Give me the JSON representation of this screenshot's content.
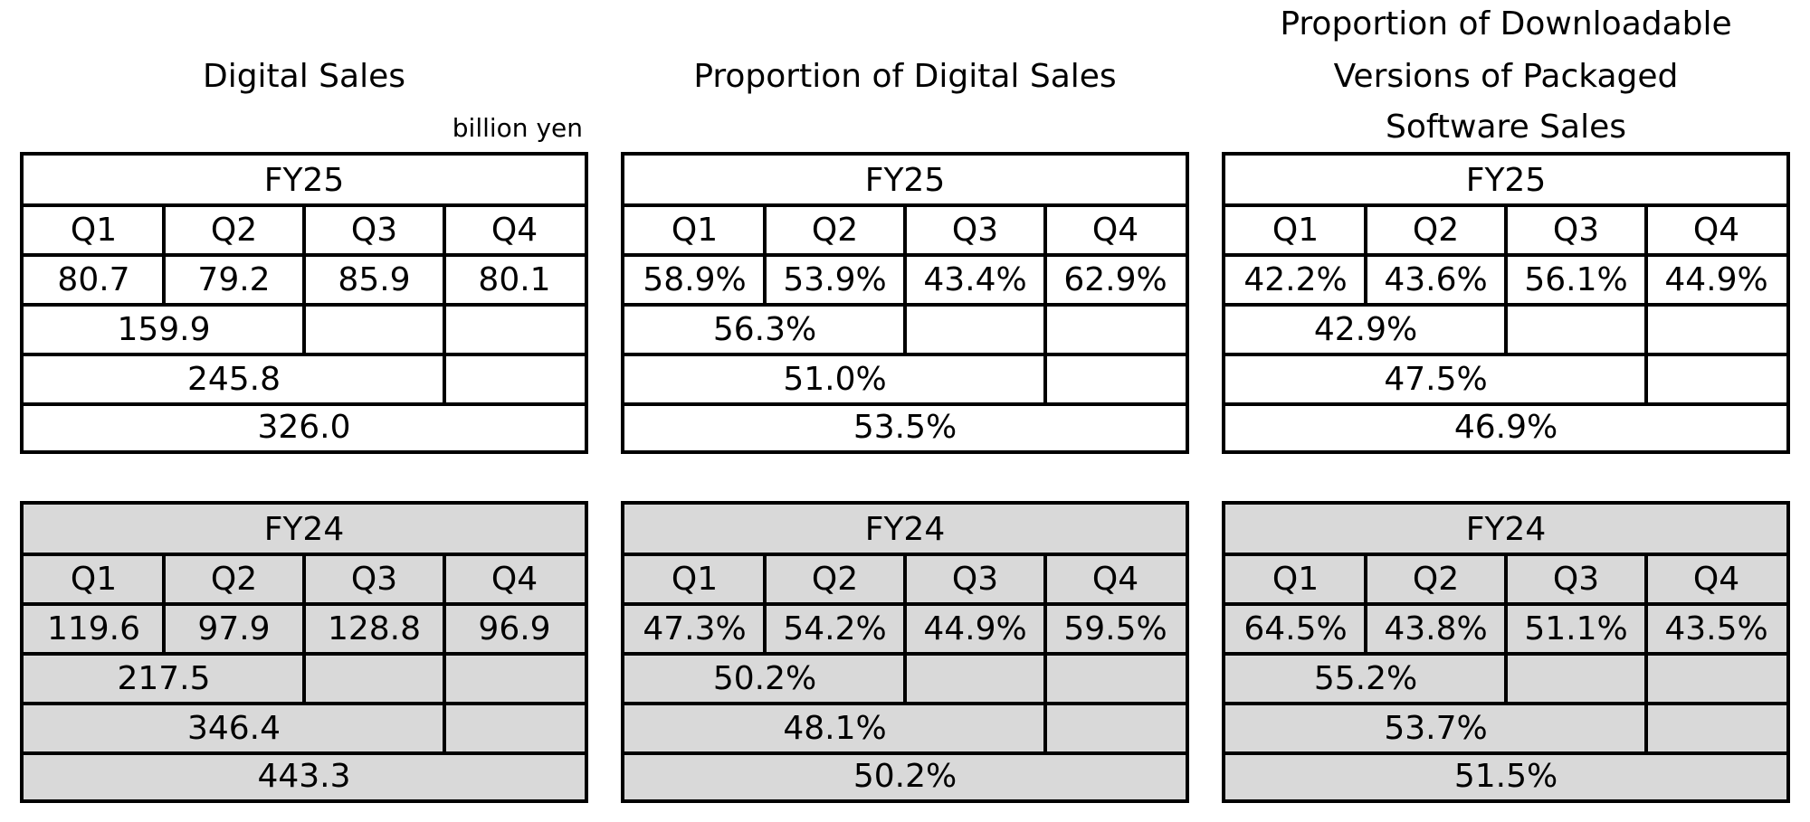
{
  "columns": [
    {
      "title_lines": [
        "Digital Sales"
      ],
      "unit": "billion yen",
      "tables": [
        {
          "year": "FY25",
          "quarters": [
            "Q1",
            "Q2",
            "Q3",
            "Q4"
          ],
          "values": [
            "80.7",
            "79.2",
            "85.9",
            "80.1"
          ],
          "h1": "159.9",
          "q1_q3": "245.8",
          "full_year": "326.0"
        },
        {
          "year": "FY24",
          "quarters": [
            "Q1",
            "Q2",
            "Q3",
            "Q4"
          ],
          "values": [
            "119.6",
            "97.9",
            "128.8",
            "96.9"
          ],
          "h1": "217.5",
          "q1_q3": "346.4",
          "full_year": "443.3"
        }
      ]
    },
    {
      "title_lines": [
        "Proportion of Digital Sales"
      ],
      "unit": "",
      "tables": [
        {
          "year": "FY25",
          "quarters": [
            "Q1",
            "Q2",
            "Q3",
            "Q4"
          ],
          "values": [
            "58.9%",
            "53.9%",
            "43.4%",
            "62.9%"
          ],
          "h1": "56.3%",
          "q1_q3": "51.0%",
          "full_year": "53.5%"
        },
        {
          "year": "FY24",
          "quarters": [
            "Q1",
            "Q2",
            "Q3",
            "Q4"
          ],
          "values": [
            "47.3%",
            "54.2%",
            "44.9%",
            "59.5%"
          ],
          "h1": "50.2%",
          "q1_q3": "48.1%",
          "full_year": "50.2%"
        }
      ]
    },
    {
      "title_lines": [
        "Proportion of Downloadable",
        "Versions of Packaged",
        "Software Sales"
      ],
      "unit": "",
      "tables": [
        {
          "year": "FY25",
          "quarters": [
            "Q1",
            "Q2",
            "Q3",
            "Q4"
          ],
          "values": [
            "42.2%",
            "43.6%",
            "56.1%",
            "44.9%"
          ],
          "h1": "42.9%",
          "q1_q3": "47.5%",
          "full_year": "46.9%"
        },
        {
          "year": "FY24",
          "quarters": [
            "Q1",
            "Q2",
            "Q3",
            "Q4"
          ],
          "values": [
            "64.5%",
            "43.8%",
            "51.1%",
            "43.5%"
          ],
          "h1": "55.2%",
          "q1_q3": "53.7%",
          "full_year": "51.5%"
        }
      ]
    }
  ],
  "colors": {
    "current_year_bg": "#ffffff",
    "prior_year_bg": "#d9d9d9",
    "border": "#000000"
  }
}
